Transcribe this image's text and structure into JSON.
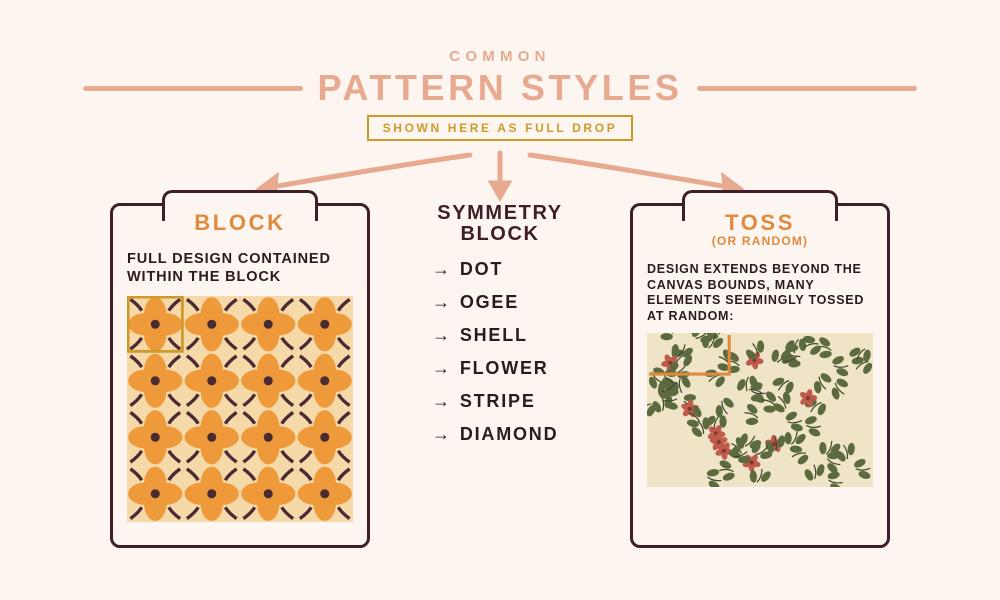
{
  "header": {
    "eyebrow": "COMMON",
    "title": "PATTERN STYLES",
    "subtitle": "SHOWN HERE AS FULL DROP",
    "eyebrow_color": "#e7a98f",
    "title_color": "#e7a98f",
    "rule_color": "#e7a98f",
    "subtitle_border": "#cf9a2c",
    "subtitle_text_color": "#cf9a2c",
    "title_fontsize": 36,
    "eyebrow_fontsize": 15,
    "subtitle_fontsize": 12
  },
  "arrows": {
    "color": "#e7a98f",
    "stroke_width": 5
  },
  "background_color": "#fcf5f0",
  "card_border_color": "#3e1f28",
  "left_card": {
    "title": "BLOCK",
    "title_color": "#e08a3e",
    "text": "FULL DESIGN CONTAINED WITHIN THE BLOCK",
    "pattern": {
      "type": "block-grid",
      "rows": 4,
      "cols": 4,
      "cell_bg": "#f6d9a8",
      "petal_color": "#ee9a3a",
      "center_color": "#4a2a33",
      "leaf_color": "#4a2a33",
      "highlight_border": "#cf9a2c",
      "highlight_cell": [
        0,
        0
      ]
    }
  },
  "middle": {
    "title_line1": "SYMMETRY",
    "title_line2": "BLOCK",
    "items": [
      "DOT",
      "OGEE",
      "SHELL",
      "FLOWER",
      "STRIPE",
      "DIAMOND"
    ],
    "bullet_glyph": "→",
    "text_color": "#2b1a1f",
    "item_fontsize": 18
  },
  "right_card": {
    "title": "TOSS",
    "subtitle": "(OR RANDOM)",
    "title_color": "#e08a3e",
    "text": "DESIGN EXTENDS BEYOND THE CANVAS BOUNDS, MANY ELEMENTS SEEMINGLY TOSSED AT RANDOM:",
    "pattern": {
      "type": "toss",
      "bg": "#efe3c8",
      "leaf_color": "#5b6b3f",
      "stem_color": "#3e4a2a",
      "flower_color": "#c05a4a",
      "flower_center": "#7c3a2f",
      "density": 70,
      "highlight_border": "#e08a3e"
    }
  }
}
